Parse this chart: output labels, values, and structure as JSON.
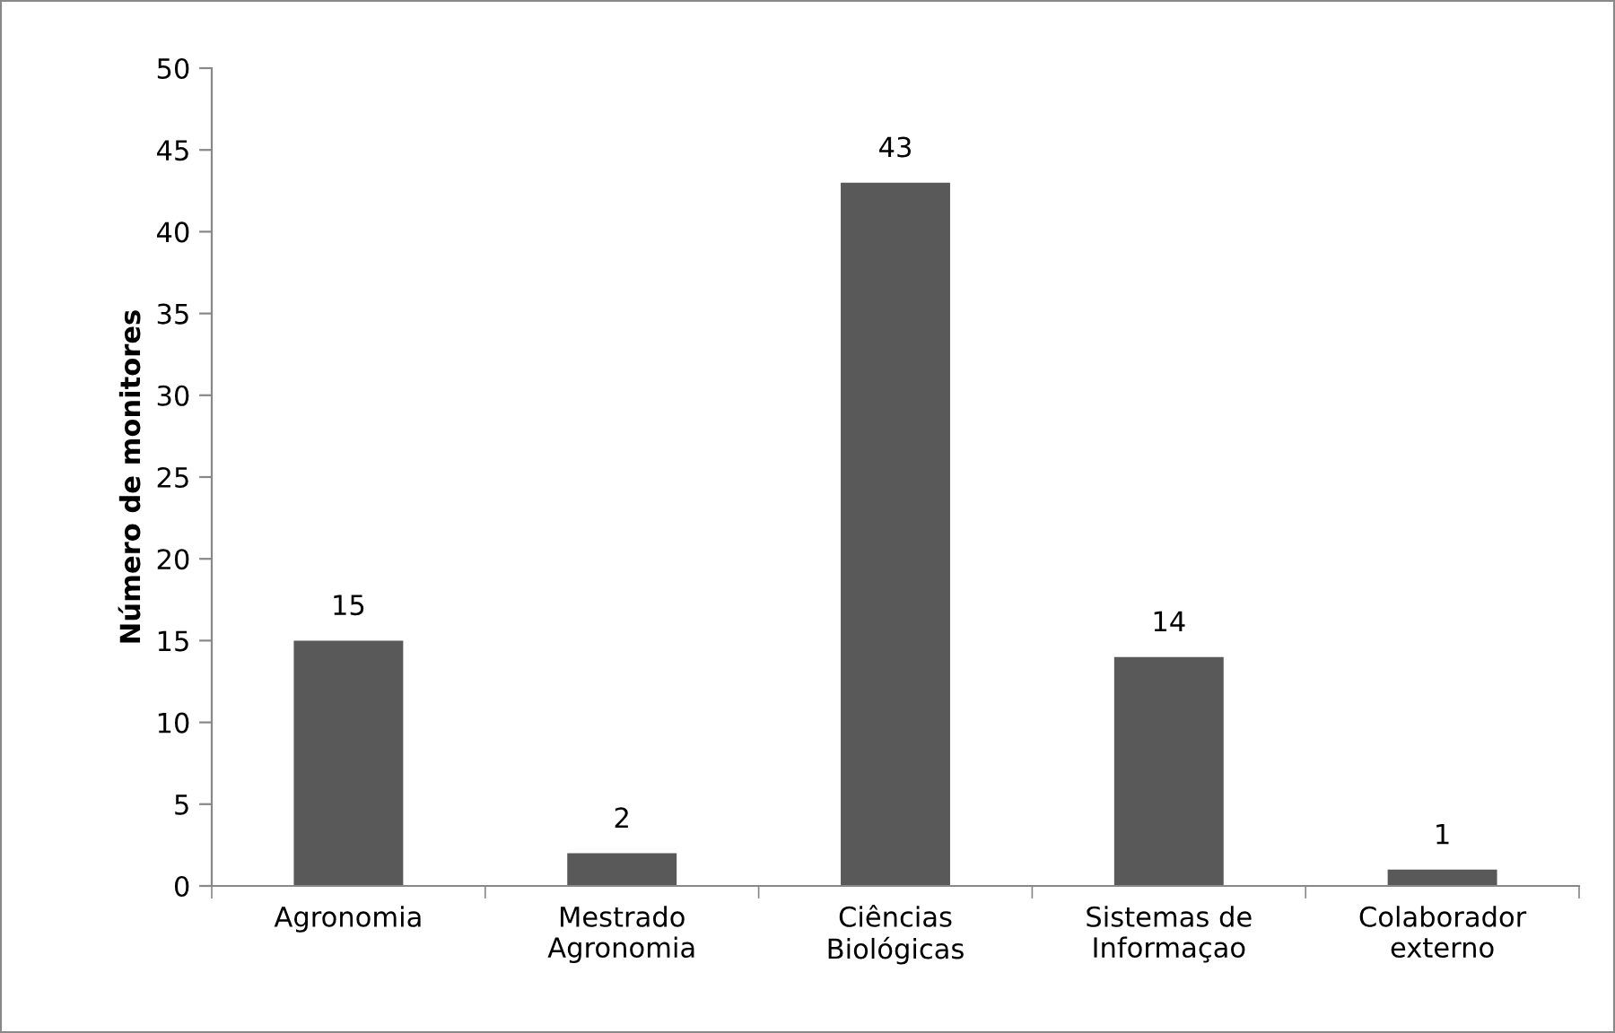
{
  "chart_data": {
    "type": "bar",
    "categories": [
      "Agronomia",
      "Mestrado\nAgronomia",
      "Ciências\nBiológicas",
      "Sistemas de\nInformaçao",
      "Colaborador\nexterno"
    ],
    "values": [
      15,
      2,
      43,
      14,
      1
    ],
    "color": "#595959",
    "ylabel": "Número de monitores",
    "ylim": [
      0,
      50
    ],
    "yticks": [
      0,
      5,
      10,
      15,
      20,
      25,
      30,
      35,
      40,
      45,
      50
    ],
    "data_labels": true,
    "grid": false,
    "legend": false
  }
}
